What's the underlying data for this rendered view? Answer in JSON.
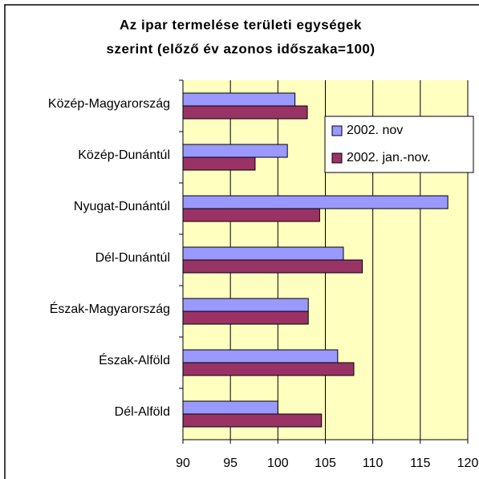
{
  "chart_data": {
    "type": "hbar",
    "title": [
      "Az ipar termelése területi egységek",
      "szerint (előző év azonos időszaka=100)"
    ],
    "categories": [
      "Közép-Magyarország",
      "Közép-Dunántúl",
      "Nyugat-Dunántúl",
      "Dél-Dunántúl",
      "Észak-Magyarország",
      "Észak-Alföld",
      "Dél-Alföld"
    ],
    "series": [
      {
        "name": "2002. nov",
        "color": "#9999ff",
        "values": [
          101.8,
          101.0,
          117.9,
          106.9,
          103.2,
          106.3,
          100.0
        ]
      },
      {
        "name": "2002. jan.-nov.",
        "color": "#993366",
        "values": [
          103.1,
          97.6,
          104.4,
          108.9,
          103.2,
          108.0,
          104.6
        ]
      }
    ],
    "xlim": [
      90,
      120
    ],
    "xticks": [
      90,
      95,
      100,
      105,
      110,
      115,
      120
    ],
    "grid": true
  }
}
